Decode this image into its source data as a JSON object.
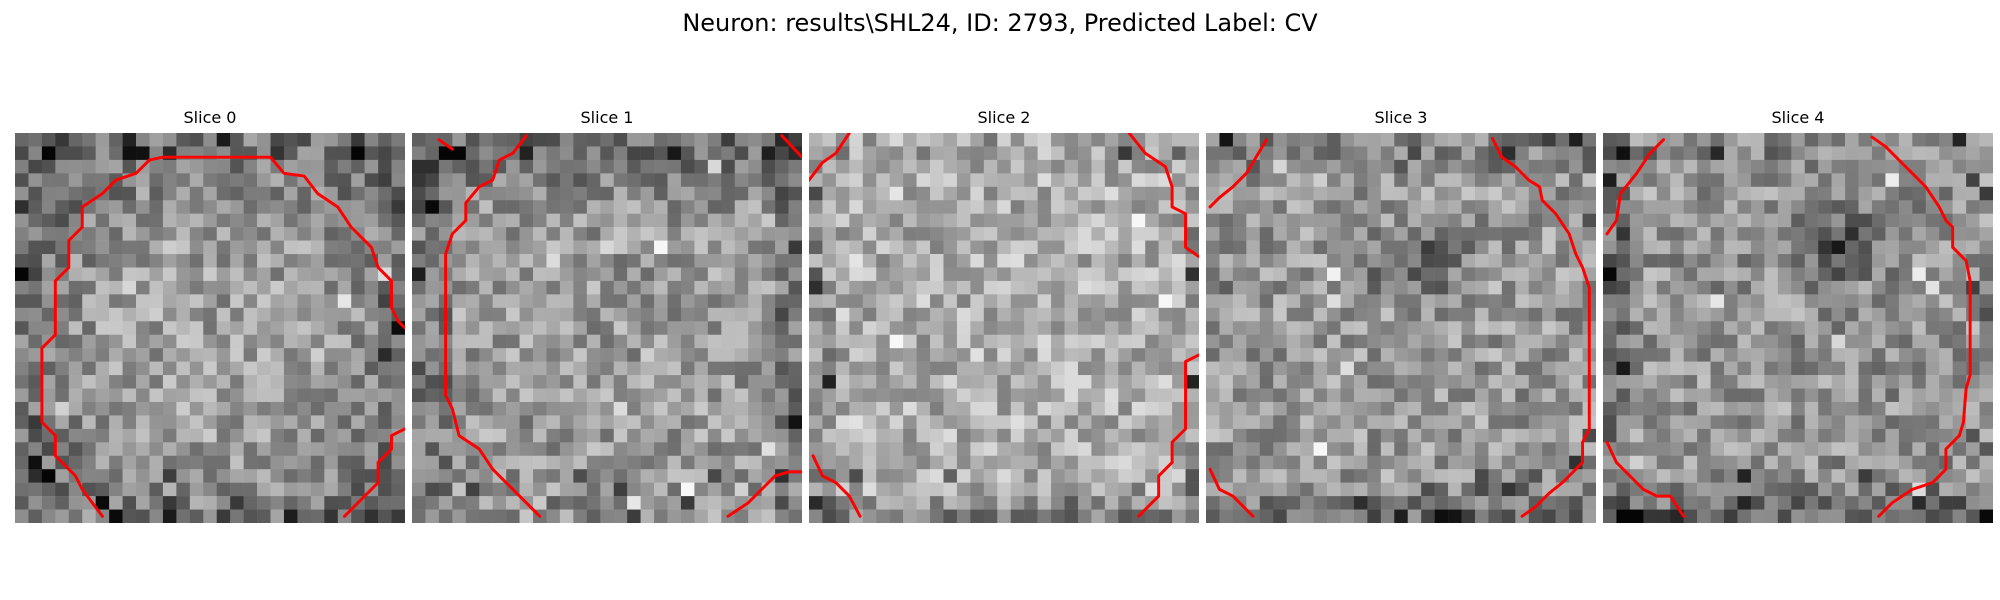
{
  "figure": {
    "title": "Neuron: results\\SHL24, ID: 2793, Predicted Label: CV"
  },
  "slices": [
    {
      "title": "Slice 0"
    },
    {
      "title": "Slice 1"
    },
    {
      "title": "Slice 2"
    },
    {
      "title": "Slice 3"
    },
    {
      "title": "Slice 4"
    }
  ],
  "colors": {
    "contour": "#ff0000",
    "background": "#ffffff"
  }
}
